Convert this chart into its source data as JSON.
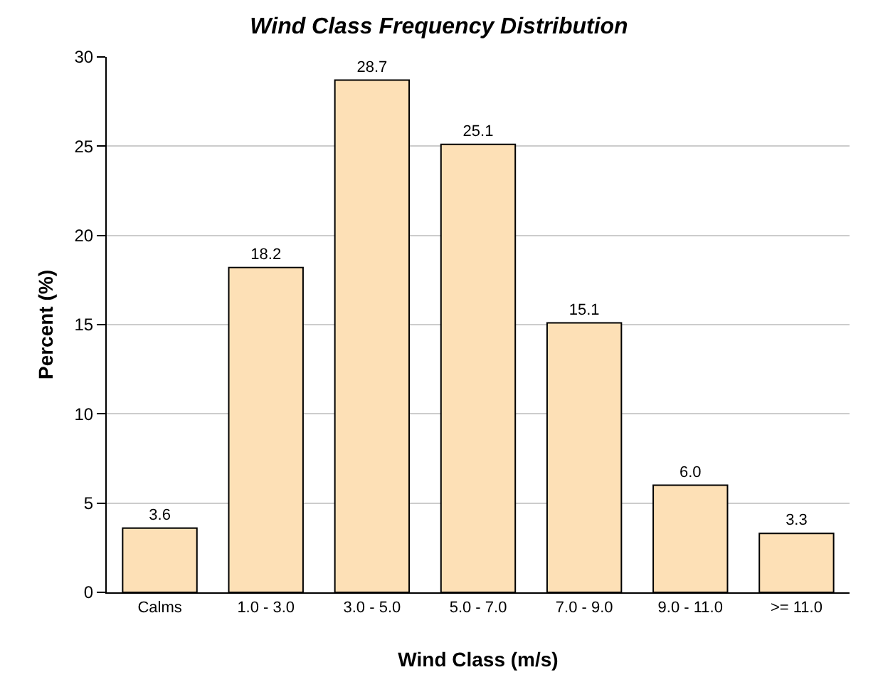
{
  "chart_data": {
    "type": "bar",
    "title": "Wind Class Frequency Distribution",
    "xlabel": "Wind Class (m/s)",
    "ylabel": "Percent (%)",
    "categories": [
      "Calms",
      "1.0 - 3.0",
      "3.0 - 5.0",
      "5.0 - 7.0",
      "7.0 - 9.0",
      "9.0 - 11.0",
      ">= 11.0"
    ],
    "values": [
      3.6,
      18.2,
      28.7,
      25.1,
      15.1,
      6.0,
      3.3
    ],
    "value_labels": [
      "3.6",
      "18.2",
      "28.7",
      "25.1",
      "15.1",
      "6.0",
      "3.3"
    ],
    "color": "#fde0b6",
    "ylim": [
      0,
      30
    ],
    "yticks": [
      0,
      5,
      10,
      15,
      20,
      25,
      30
    ],
    "grid": "y"
  }
}
